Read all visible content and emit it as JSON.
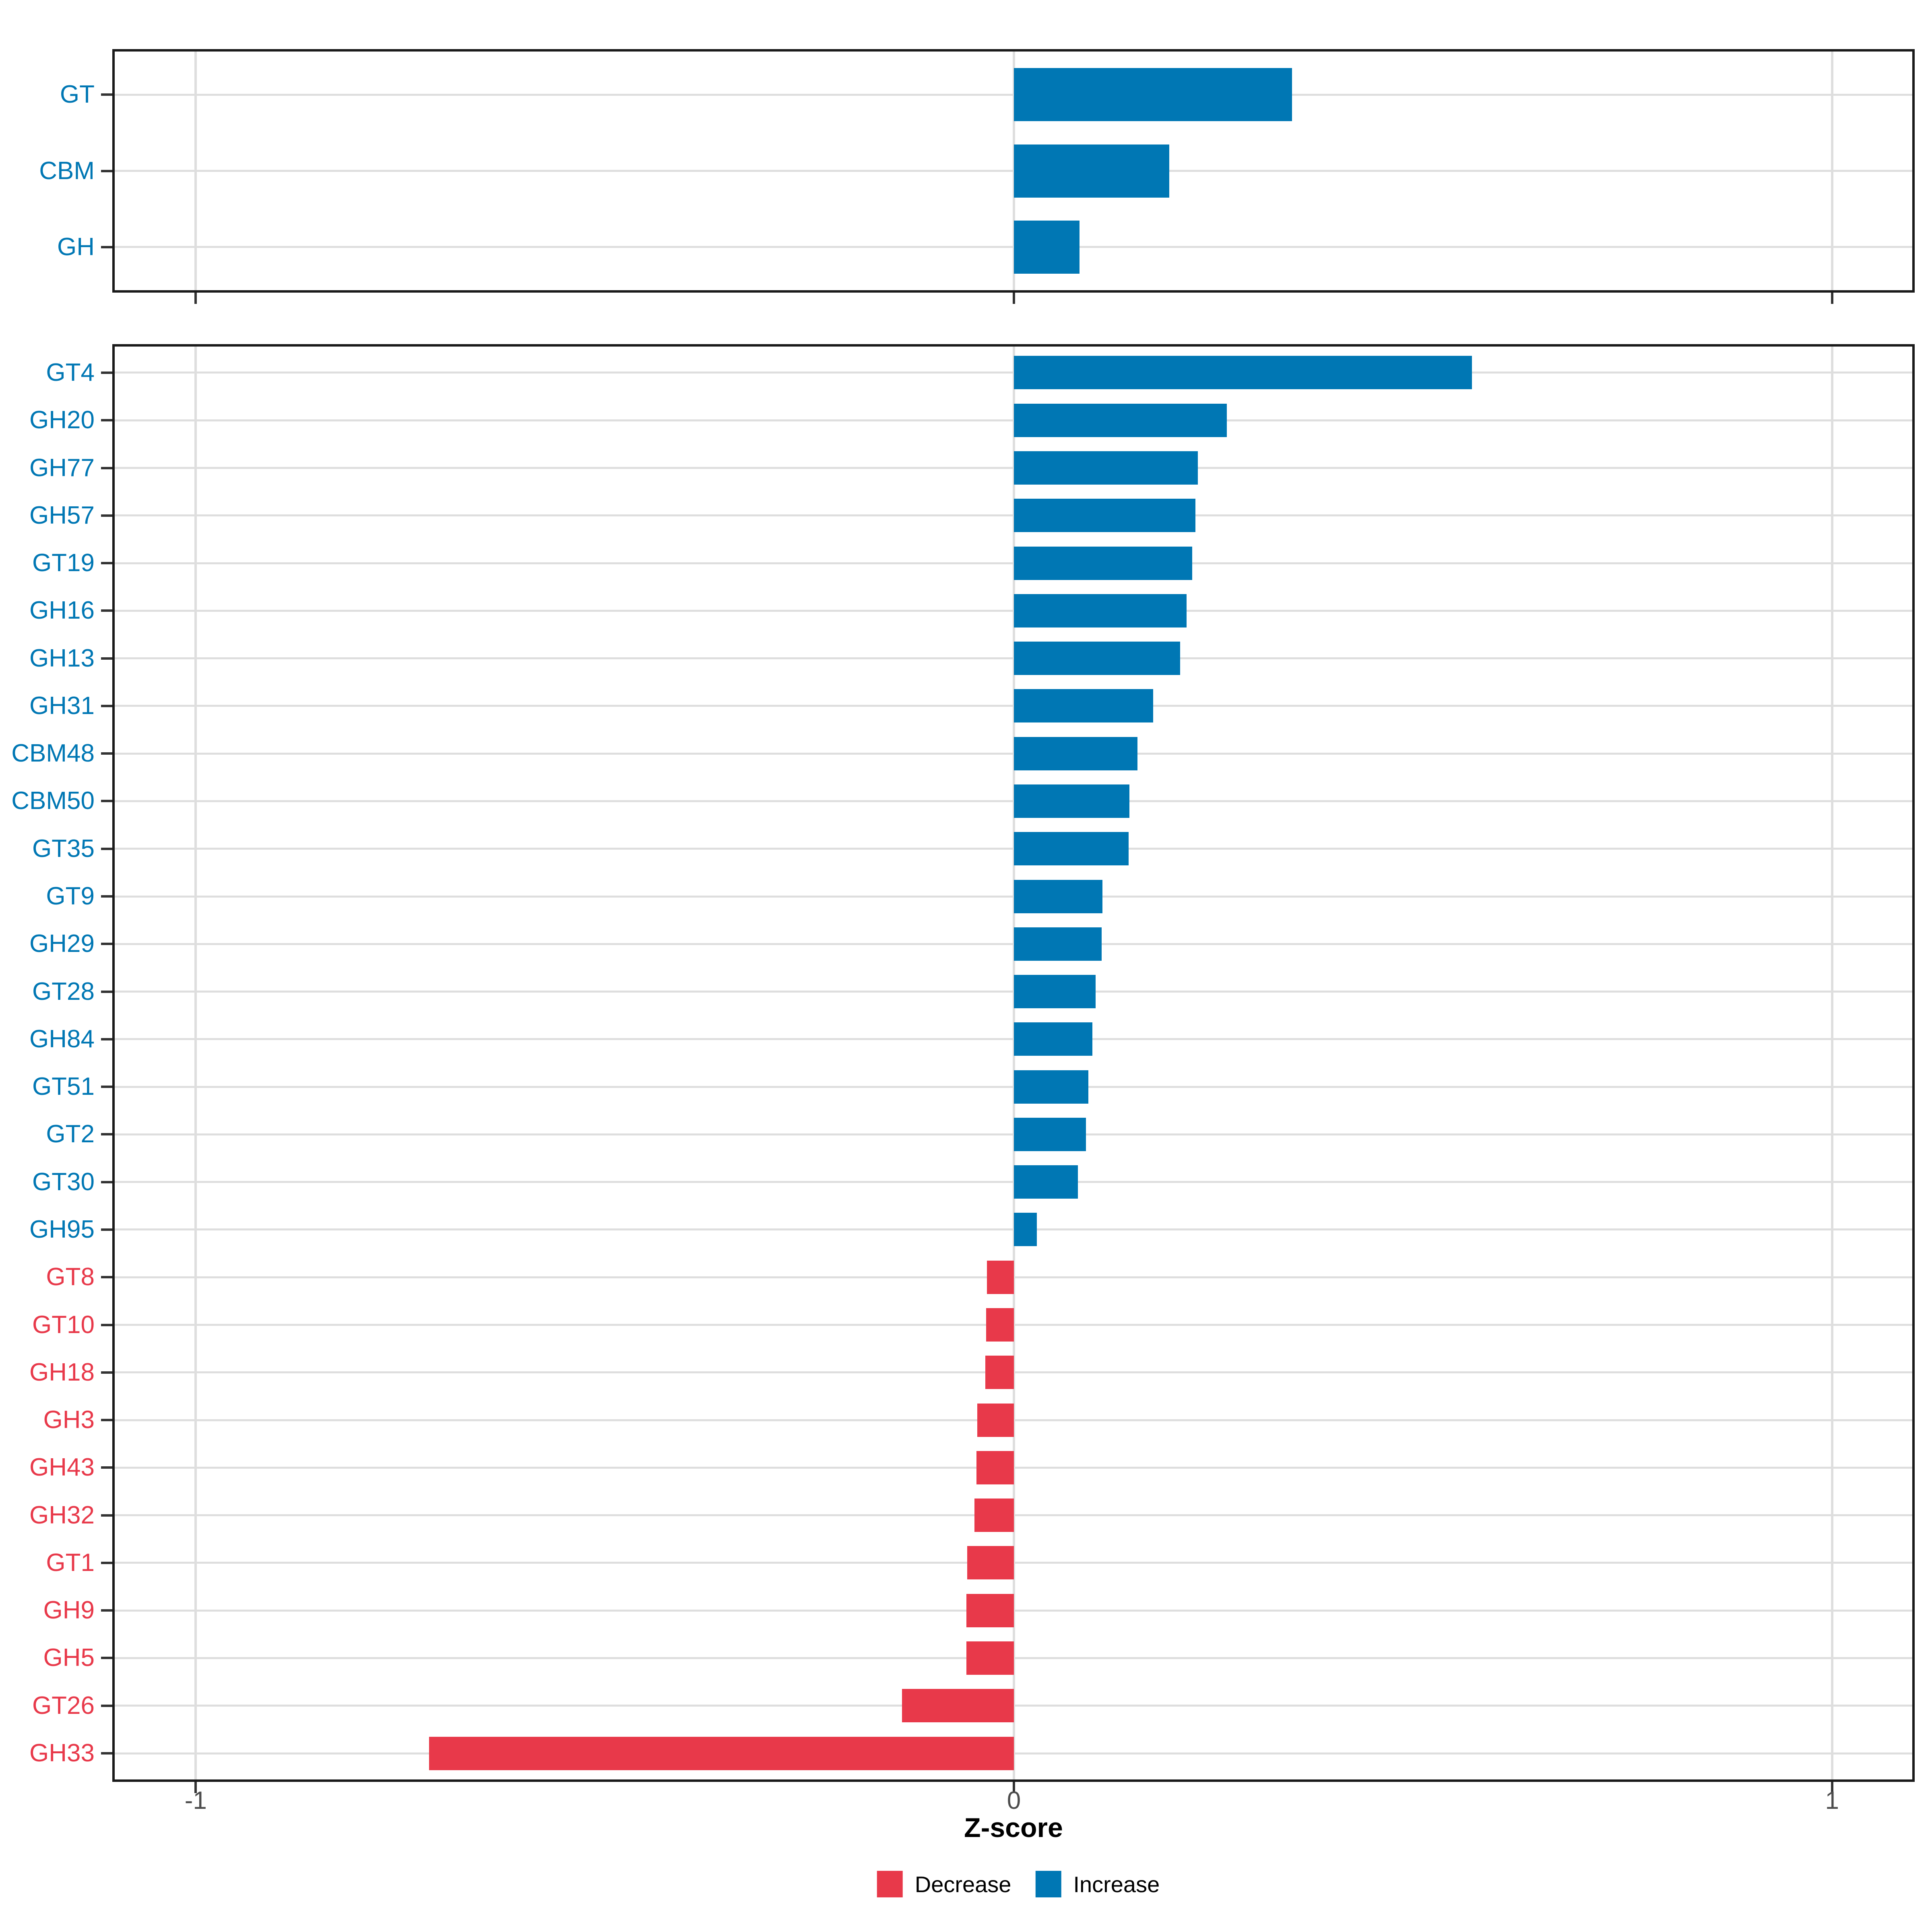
{
  "figure": {
    "xlabel": "Z-score",
    "background": "#FFFFFF",
    "colors": {
      "increase": "#0077B4",
      "decrease": "#E8394A",
      "gridline": "#DEDEDE",
      "panel_border": "#1A1A1A",
      "tick_mark": "#333333",
      "tick_label": "#4D4D4D",
      "axis_title": "#000000",
      "legend_text": "#000000"
    },
    "x_axis": {
      "tick_values": [
        -1,
        0,
        1
      ],
      "tick_labels": [
        "-1",
        "0",
        "1"
      ],
      "limits": [
        -1.1,
        1.1
      ]
    },
    "legend": {
      "items": [
        {
          "label": "Decrease",
          "key": "decrease"
        },
        {
          "label": "Increase",
          "key": "increase"
        }
      ]
    }
  },
  "chart_data": [
    {
      "type": "bar",
      "orientation": "horizontal",
      "panel": "cazyme-class-level",
      "title": "",
      "xlabel": "Z-score",
      "xlim": [
        -1.1,
        1.1
      ],
      "grid": true,
      "categories": [
        "GT",
        "CBM",
        "GH"
      ],
      "values": [
        0.34,
        0.19,
        0.08
      ],
      "direction": [
        "increase",
        "increase",
        "increase"
      ]
    },
    {
      "type": "bar",
      "orientation": "horizontal",
      "panel": "cazyme-family-level",
      "title": "",
      "xlabel": "Z-score",
      "xlim": [
        -1.1,
        1.1
      ],
      "grid": true,
      "legend_position": "bottom",
      "categories": [
        "GT4",
        "GH20",
        "GH77",
        "GH57",
        "GT19",
        "GH16",
        "GH13",
        "GH31",
        "CBM48",
        "CBM50",
        "GT35",
        "GT9",
        "GH29",
        "GT28",
        "GH84",
        "GT51",
        "GT2",
        "GT30",
        "GH95",
        "GT8",
        "GT10",
        "GH18",
        "GH3",
        "GH43",
        "GH32",
        "GT1",
        "GH9",
        "GH5",
        "GT26",
        "GH33"
      ],
      "values": [
        0.56,
        0.26,
        0.225,
        0.222,
        0.218,
        0.211,
        0.203,
        0.17,
        0.151,
        0.141,
        0.14,
        0.108,
        0.107,
        0.1,
        0.096,
        0.091,
        0.088,
        0.078,
        0.028,
        -0.033,
        -0.034,
        -0.035,
        -0.045,
        -0.046,
        -0.048,
        -0.057,
        -0.058,
        -0.058,
        -0.137,
        -0.715
      ],
      "direction": [
        "increase",
        "increase",
        "increase",
        "increase",
        "increase",
        "increase",
        "increase",
        "increase",
        "increase",
        "increase",
        "increase",
        "increase",
        "increase",
        "increase",
        "increase",
        "increase",
        "increase",
        "increase",
        "increase",
        "decrease",
        "decrease",
        "decrease",
        "decrease",
        "decrease",
        "decrease",
        "decrease",
        "decrease",
        "decrease",
        "decrease",
        "decrease"
      ]
    }
  ]
}
